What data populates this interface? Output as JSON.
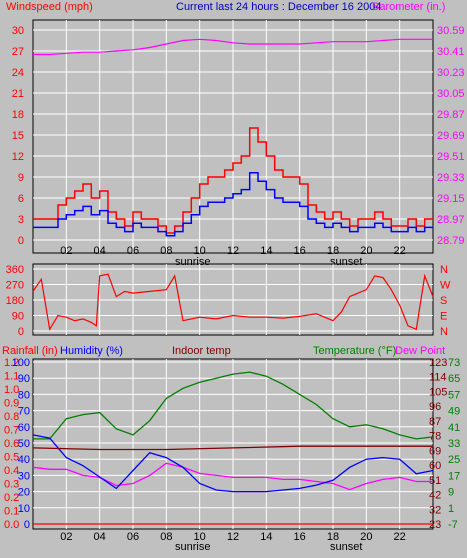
{
  "header": {
    "windspeed_label": "Windspeed (mph)",
    "title": "Current last 24 hours : December 16 2004",
    "barometer_label": "Barometer (in.)"
  },
  "bottom_headers": {
    "rainfall": "Rainfall (in)",
    "humidity": "Humidity (%)",
    "indoor": "Indoor temp",
    "temperature": "Temperature (°F)",
    "dewpoint": "Dew Point"
  },
  "x_ticks": [
    "02",
    "04",
    "06",
    "08",
    "10",
    "12",
    "14",
    "16",
    "18",
    "20",
    "22"
  ],
  "markers": {
    "sunrise": "sunrise",
    "sunset": "sunset"
  },
  "colors": {
    "background": "#c0c0c0",
    "wind_avg": "#0000ff",
    "wind_gust": "#ff0000",
    "barometer": "#ff00ff",
    "direction": "#ff0000",
    "temperature": "#008000",
    "dewpoint": "#ff00ff",
    "humidity": "#0000ff",
    "indoor": "#800000",
    "rainfall": "#ff0000"
  },
  "chart_data": [
    {
      "type": "line",
      "name": "wind_and_barometer",
      "x_range": [
        0,
        24
      ],
      "left_axis": {
        "label": "Windspeed (mph)",
        "ticks": [
          "0",
          "3",
          "6",
          "9",
          "12",
          "15",
          "18",
          "21",
          "24",
          "27",
          "30"
        ],
        "ylim": [
          0,
          30
        ]
      },
      "right_axis": {
        "label": "Barometer (in.)",
        "ticks": [
          "28.79",
          "28.97",
          "29.15",
          "29.33",
          "29.51",
          "29.69",
          "29.87",
          "30.05",
          "30.23",
          "30.41",
          "30.59"
        ],
        "ylim": [
          28.79,
          30.59
        ]
      },
      "series": [
        {
          "name": "Windspeed (mph)",
          "axis": "left",
          "color": "#ff0000",
          "x": [
            0,
            0.5,
            1,
            1.5,
            2,
            2.5,
            3,
            3.5,
            4,
            4.5,
            5,
            5.5,
            6,
            6.5,
            7,
            7.5,
            8,
            8.5,
            9,
            9.5,
            10,
            10.5,
            11,
            11.5,
            12,
            12.5,
            13,
            13.5,
            14,
            14.5,
            15,
            15.5,
            16,
            16.5,
            17,
            17.5,
            18,
            18.5,
            19,
            19.5,
            20,
            20.5,
            21,
            21.5,
            22,
            22.5,
            23,
            23.5
          ],
          "values": [
            3,
            3,
            3,
            5,
            6,
            7,
            8,
            6,
            7,
            4,
            3,
            2,
            4,
            3,
            3,
            2,
            1,
            2,
            4,
            6,
            8,
            9,
            9,
            10,
            11,
            12,
            16,
            14,
            12,
            10,
            9,
            9,
            8,
            5,
            4,
            3,
            4,
            3,
            2,
            3,
            3,
            4,
            3,
            2,
            2,
            3,
            2,
            3
          ]
        },
        {
          "name": "Barometer (in.)",
          "axis": "right",
          "color": "#ff00ff",
          "x": [
            0,
            1,
            2,
            3,
            4,
            5,
            6,
            7,
            8,
            9,
            10,
            11,
            12,
            13,
            14,
            15,
            16,
            17,
            18,
            19,
            20,
            21,
            22,
            23,
            24
          ],
          "values": [
            30.38,
            30.38,
            30.39,
            30.4,
            30.4,
            30.41,
            30.42,
            30.44,
            30.47,
            30.5,
            30.51,
            30.5,
            30.48,
            30.47,
            30.47,
            30.47,
            30.47,
            30.48,
            30.49,
            30.49,
            30.49,
            30.5,
            30.51,
            30.51,
            30.51
          ]
        }
      ]
    },
    {
      "type": "line",
      "name": "wind_direction",
      "x_range": [
        0,
        24
      ],
      "left_axis": {
        "ticks": [
          "0",
          "90",
          "180",
          "270",
          "360"
        ],
        "ylim": [
          0,
          360
        ]
      },
      "right_axis": {
        "ticks": [
          "N",
          "W",
          "S",
          "E",
          "N"
        ]
      },
      "series": [
        {
          "name": "Wind direction",
          "color": "#ff0000",
          "x": [
            0,
            0.5,
            1,
            1.5,
            2,
            2.5,
            3,
            3.5,
            3.8,
            4,
            4.5,
            5,
            5.5,
            6,
            7,
            8,
            8.5,
            9,
            10,
            11,
            12,
            13,
            14,
            15,
            16,
            17,
            18,
            18.5,
            19,
            20,
            20.5,
            21,
            21.5,
            22,
            22.5,
            23,
            23.5,
            24
          ],
          "values": [
            230,
            300,
            10,
            90,
            80,
            60,
            70,
            50,
            30,
            320,
            330,
            200,
            230,
            220,
            230,
            240,
            320,
            60,
            80,
            70,
            90,
            80,
            80,
            75,
            85,
            100,
            60,
            110,
            200,
            240,
            320,
            310,
            240,
            150,
            30,
            10,
            320,
            200
          ]
        }
      ]
    },
    {
      "type": "line",
      "name": "temperature_humidity_rain",
      "x_range": [
        0,
        24
      ],
      "axes": {
        "rainfall": {
          "label": "Rainfall (in)",
          "ticks": [
            "0.0",
            "0.1",
            "0.2",
            "0.3",
            "0.4",
            "0.5",
            "0.6",
            "0.7",
            "0.8",
            "0.9",
            "1.0",
            "1.1",
            "1.2"
          ]
        },
        "humidity": {
          "label": "Humidity (%)",
          "ticks": [
            "0",
            "10",
            "20",
            "30",
            "40",
            "50",
            "60",
            "70",
            "80",
            "90",
            "100"
          ]
        },
        "indoor": {
          "label": "Indoor temp",
          "ticks": [
            "23",
            "32",
            "42",
            "51",
            "60",
            "69",
            "78",
            "87",
            "96",
            "105",
            "114",
            "123"
          ]
        },
        "temperature": {
          "label": "Temperature (°F)",
          "ticks": [
            "-7",
            "1",
            "9",
            "17",
            "25",
            "33",
            "41",
            "49",
            "57",
            "65",
            "73"
          ],
          "ylim": [
            -7,
            73
          ]
        },
        "dewpoint": {
          "label": "Dew Point"
        }
      },
      "series": [
        {
          "name": "Temperature (°F)",
          "color": "#008000",
          "x": [
            0,
            1,
            2,
            3,
            4,
            5,
            6,
            7,
            8,
            9,
            10,
            11,
            12,
            13,
            14,
            15,
            16,
            17,
            18,
            19,
            20,
            21,
            22,
            23,
            24
          ],
          "values": [
            35,
            35,
            45,
            47,
            48,
            40,
            37,
            44,
            55,
            60,
            63,
            65,
            67,
            68,
            66,
            62,
            57,
            52,
            45,
            41,
            42,
            40,
            37,
            35,
            36
          ]
        },
        {
          "name": "Dew Point",
          "color": "#ff00ff",
          "x": [
            0,
            1,
            2,
            3,
            4,
            5,
            6,
            7,
            8,
            9,
            10,
            11,
            12,
            13,
            14,
            15,
            16,
            17,
            18,
            19,
            20,
            21,
            22,
            23,
            24
          ],
          "values": [
            21,
            20,
            20,
            17,
            16,
            12,
            13,
            17,
            23,
            21,
            18,
            17,
            16,
            16,
            16,
            15,
            15,
            14,
            13,
            10,
            13,
            15,
            16,
            14,
            14
          ]
        },
        {
          "name": "Humidity (%)",
          "color": "#0000ff",
          "x": [
            0,
            1,
            2,
            3,
            4,
            5,
            6,
            7,
            8,
            9,
            10,
            11,
            12,
            13,
            14,
            15,
            16,
            17,
            18,
            19,
            20,
            21,
            22,
            23,
            24
          ],
          "values": [
            55,
            53,
            41,
            36,
            29,
            22,
            33,
            44,
            41,
            35,
            25,
            21,
            20,
            20,
            20,
            21,
            22,
            24,
            27,
            35,
            40,
            41,
            40,
            31,
            33
          ]
        },
        {
          "name": "Indoor temp",
          "color": "#800000",
          "x": [
            0,
            4,
            8,
            12,
            16,
            20,
            24
          ],
          "values": [
            70,
            69,
            69,
            70,
            71,
            71,
            71
          ]
        },
        {
          "name": "Rainfall (in)",
          "color": "#ff0000",
          "x": [
            0,
            24
          ],
          "values": [
            0,
            0
          ]
        }
      ]
    }
  ]
}
